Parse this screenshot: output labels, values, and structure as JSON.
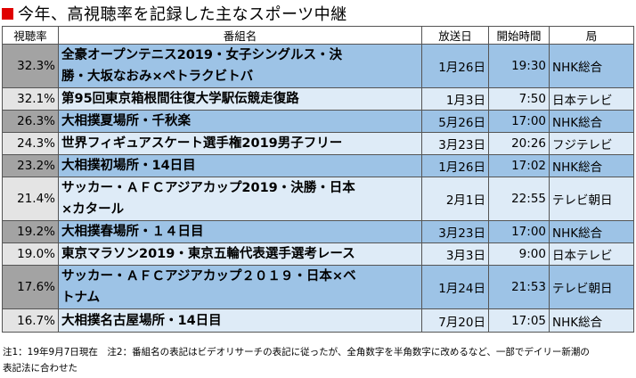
{
  "title": "今年、高視聴率を記録した主なスポーツ中継",
  "colors": {
    "title_marker": "#e00000",
    "row_dark_rate": "#a3a3a3",
    "row_dark_cell": "#9dc3e6",
    "row_light_rate": "#e4e4e4",
    "row_light_cell": "#deebf7"
  },
  "headers": {
    "rate": "視聴率",
    "program": "番組名",
    "date": "放送日",
    "start": "開始時間",
    "station": "局"
  },
  "rows": [
    {
      "rate": "32.3%",
      "program_lines": [
        "全豪オープンテニス2019・女子シングルス・決",
        "勝・大坂なおみ×ペトラクビトバ"
      ],
      "date": "1月26日",
      "start": "19:30",
      "station": "NHK総合"
    },
    {
      "rate": "32.1%",
      "program_lines": [
        "第95回東京箱根間往復大学駅伝競走復路"
      ],
      "date": "1月3日",
      "start": "7:50",
      "station": "日本テレビ"
    },
    {
      "rate": "26.3%",
      "program_lines": [
        "大相撲夏場所・千秋楽"
      ],
      "date": "5月26日",
      "start": "17:00",
      "station": "NHK総合"
    },
    {
      "rate": "24.3%",
      "program_lines": [
        "世界フィギュアスケート選手権2019男子フリー"
      ],
      "date": "3月23日",
      "start": "20:26",
      "station": "フジテレビ"
    },
    {
      "rate": "23.2%",
      "program_lines": [
        "大相撲初場所・14日目"
      ],
      "date": "1月26日",
      "start": "17:02",
      "station": "NHK総合"
    },
    {
      "rate": "21.4%",
      "program_lines": [
        "サッカー・ＡＦＣアジアカップ2019・決勝・日本",
        "×カタール"
      ],
      "date": "2月1日",
      "start": "22:55",
      "station": "テレビ朝日"
    },
    {
      "rate": "19.2%",
      "program_lines": [
        "大相撲春場所・１４日目"
      ],
      "date": "3月23日",
      "start": "17:00",
      "station": "NHK総合"
    },
    {
      "rate": "19.0%",
      "program_lines": [
        "東京マラソン2019・東京五輪代表選手選考レース"
      ],
      "date": "3月3日",
      "start": "9:00",
      "station": "日本テレビ"
    },
    {
      "rate": "17.6%",
      "program_lines": [
        "サッカー・ＡＦＣアジアカップ２０１９・日本×ベ",
        "トナム"
      ],
      "date": "1月24日",
      "start": "21:53",
      "station": "テレビ朝日"
    },
    {
      "rate": "16.7%",
      "program_lines": [
        "大相撲名古屋場所・14日目"
      ],
      "date": "7月20日",
      "start": "17:05",
      "station": "NHK総合"
    }
  ],
  "notes": [
    "注1：19年9月7日現在　注2：番組名の表記はビデオリサーチの表記に従ったが、全角数字を半角数字に改めるなど、一部でデイリー新潮の",
    "表記法に合わせた"
  ]
}
